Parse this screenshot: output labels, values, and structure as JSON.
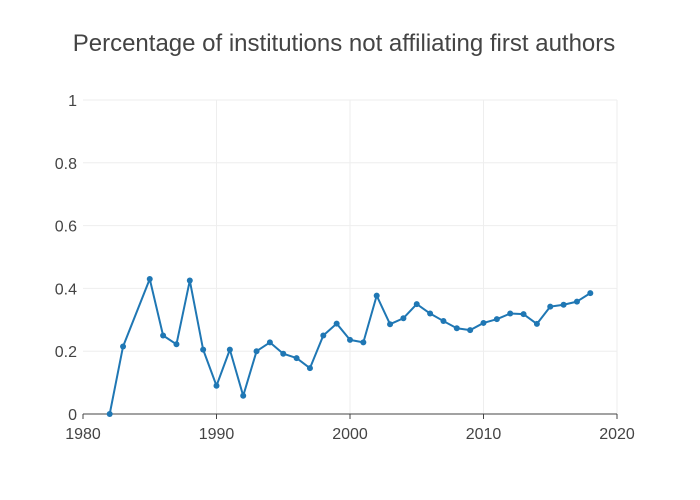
{
  "chart_data": {
    "type": "line",
    "title": "Percentage of institutions not affiliating first authors",
    "xlim": [
      1980,
      2020
    ],
    "ylim": [
      0,
      1
    ],
    "x_ticks": [
      1980,
      1990,
      2000,
      2010,
      2020
    ],
    "x_tick_labels": [
      "1980",
      "1990",
      "2000",
      "2010",
      "2020"
    ],
    "y_ticks": [
      0,
      0.2,
      0.4,
      0.6,
      0.8,
      1
    ],
    "y_tick_labels": [
      "0",
      "0.2",
      "0.4",
      "0.6",
      "0.8",
      "1"
    ],
    "grid": true,
    "legend": false,
    "series": [
      {
        "color": "#1f77b4",
        "x": [
          1982,
          1983,
          1985,
          1986,
          1987,
          1988,
          1989,
          1990,
          1991,
          1992,
          1993,
          1994,
          1995,
          1996,
          1997,
          1998,
          1999,
          2000,
          2001,
          2002,
          2003,
          2004,
          2005,
          2006,
          2007,
          2008,
          2009,
          2010,
          2011,
          2012,
          2013,
          2014,
          2015,
          2016,
          2017,
          2018
        ],
        "y": [
          0,
          0.215,
          0.43,
          0.25,
          0.222,
          0.425,
          0.205,
          0.09,
          0.205,
          0.058,
          0.2,
          0.228,
          0.192,
          0.178,
          0.146,
          0.25,
          0.288,
          0.236,
          0.228,
          0.377,
          0.286,
          0.305,
          0.35,
          0.32,
          0.296,
          0.273,
          0.267,
          0.29,
          0.302,
          0.32,
          0.318,
          0.287,
          0.342,
          0.348,
          0.358,
          0.385
        ]
      }
    ]
  }
}
